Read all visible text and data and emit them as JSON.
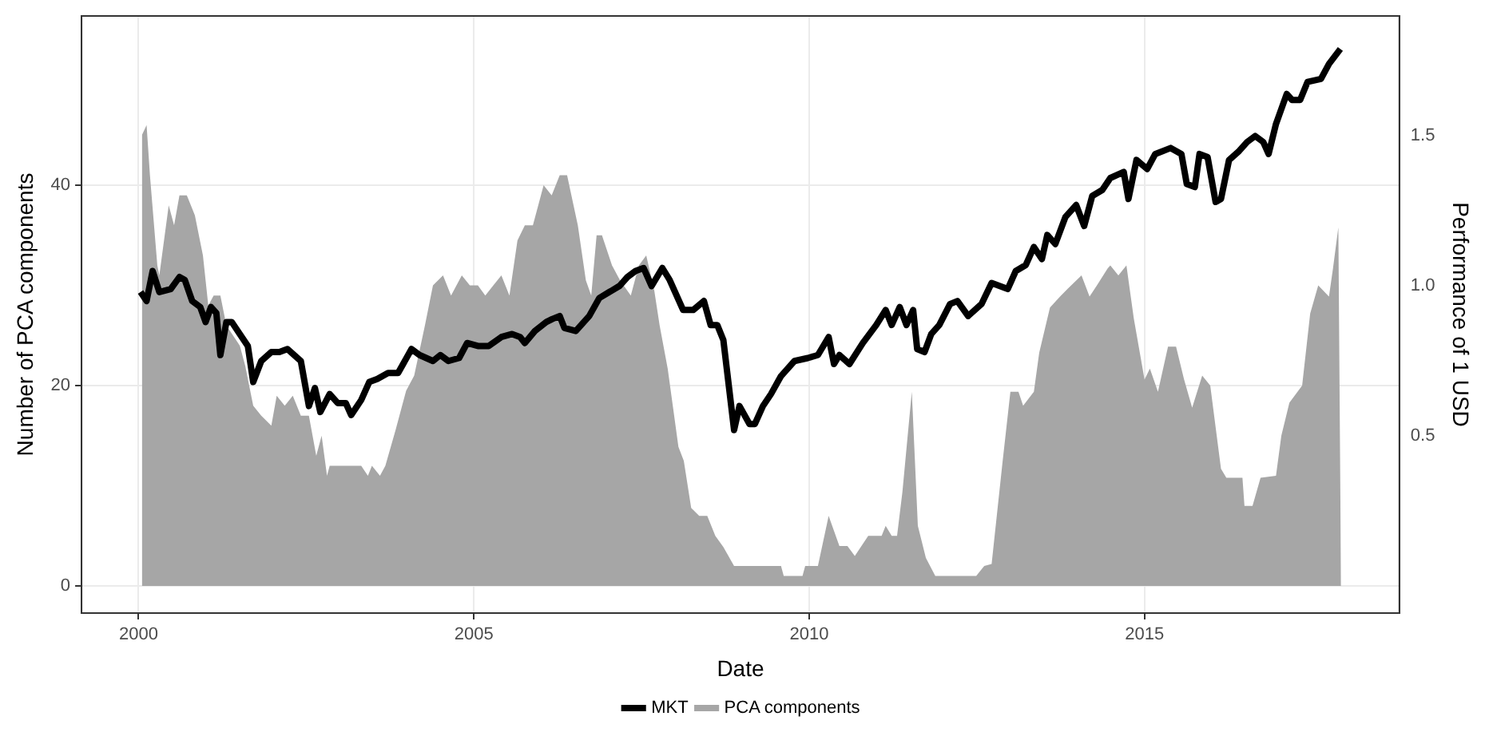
{
  "chart_data": {
    "type": "line",
    "xlabel": "Date",
    "ylabel": "Number of PCA components",
    "y2label": "Performance of 1 USD",
    "xlim": [
      1999.15,
      2018.8
    ],
    "xticks": [
      2000,
      2005,
      2010,
      2015
    ],
    "ylim": [
      -2.7,
      56.9
    ],
    "yticks": [
      0,
      20,
      40
    ],
    "y2lim": [
      -0.09,
      1.9
    ],
    "y2ticks": [
      {
        "value": 0.5,
        "label": "0.5"
      },
      {
        "value": 1,
        "label": "1.0"
      },
      {
        "value": 1.5,
        "label": "1.5"
      }
    ],
    "grid": true,
    "legend": "bottom",
    "marker": "none",
    "line_style": "solid",
    "series": [
      {
        "name": "MKT",
        "type": "line",
        "axis": "y2",
        "color": "#000000",
        "x": [
          2000.03,
          2000.12,
          2000.21,
          2000.31,
          2000.48,
          2000.61,
          2000.69,
          2000.8,
          2000.92,
          2001.0,
          2001.08,
          2001.16,
          2001.22,
          2001.31,
          2001.39,
          2001.51,
          2001.63,
          2001.71,
          2001.83,
          2001.98,
          2002.1,
          2002.22,
          2002.42,
          2002.54,
          2002.63,
          2002.71,
          2002.85,
          2002.97,
          2003.09,
          2003.17,
          2003.32,
          2003.44,
          2003.56,
          2003.72,
          2003.87,
          2004.07,
          2004.19,
          2004.39,
          2004.5,
          2004.62,
          2004.78,
          2004.9,
          2005.06,
          2005.22,
          2005.41,
          2005.57,
          2005.69,
          2005.76,
          2005.91,
          2006.08,
          2006.17,
          2006.28,
          2006.35,
          2006.52,
          2006.72,
          2006.87,
          2007.02,
          2007.17,
          2007.29,
          2007.41,
          2007.53,
          2007.65,
          2007.81,
          2007.92,
          2008.12,
          2008.27,
          2008.43,
          2008.53,
          2008.63,
          2008.72,
          2008.88,
          2008.96,
          2009.11,
          2009.19,
          2009.31,
          2009.43,
          2009.58,
          2009.78,
          2009.98,
          2010.13,
          2010.29,
          2010.37,
          2010.45,
          2010.6,
          2010.8,
          2011.0,
          2011.14,
          2011.23,
          2011.35,
          2011.45,
          2011.55,
          2011.61,
          2011.72,
          2011.82,
          2011.94,
          2012.1,
          2012.21,
          2012.37,
          2012.57,
          2012.72,
          2012.96,
          2013.08,
          2013.23,
          2013.35,
          2013.47,
          2013.55,
          2013.67,
          2013.82,
          2013.98,
          2014.1,
          2014.22,
          2014.37,
          2014.49,
          2014.69,
          2014.76,
          2014.88,
          2015.04,
          2015.16,
          2015.39,
          2015.55,
          2015.63,
          2015.75,
          2015.82,
          2015.94,
          2016.06,
          2016.14,
          2016.26,
          2016.41,
          2016.53,
          2016.65,
          2016.77,
          2016.85,
          2016.96,
          2017.12,
          2017.2,
          2017.32,
          2017.43,
          2017.63,
          2017.75,
          2017.92
        ],
        "values": [
          0.98,
          0.95,
          1.05,
          0.98,
          0.99,
          1.03,
          1.02,
          0.95,
          0.93,
          0.88,
          0.93,
          0.91,
          0.77,
          0.88,
          0.88,
          0.84,
          0.8,
          0.68,
          0.75,
          0.78,
          0.78,
          0.79,
          0.75,
          0.6,
          0.66,
          0.58,
          0.64,
          0.61,
          0.61,
          0.57,
          0.62,
          0.68,
          0.69,
          0.71,
          0.71,
          0.79,
          0.77,
          0.75,
          0.77,
          0.75,
          0.76,
          0.81,
          0.8,
          0.8,
          0.83,
          0.84,
          0.83,
          0.81,
          0.85,
          0.88,
          0.89,
          0.9,
          0.86,
          0.85,
          0.9,
          0.96,
          0.98,
          1.0,
          1.03,
          1.05,
          1.06,
          1.0,
          1.06,
          1.02,
          0.92,
          0.92,
          0.95,
          0.87,
          0.87,
          0.82,
          0.52,
          0.6,
          0.54,
          0.54,
          0.6,
          0.64,
          0.7,
          0.75,
          0.76,
          0.77,
          0.83,
          0.74,
          0.77,
          0.74,
          0.81,
          0.87,
          0.92,
          0.87,
          0.93,
          0.87,
          0.92,
          0.79,
          0.78,
          0.84,
          0.87,
          0.94,
          0.95,
          0.9,
          0.94,
          1.01,
          0.99,
          1.05,
          1.07,
          1.13,
          1.09,
          1.17,
          1.14,
          1.23,
          1.27,
          1.2,
          1.3,
          1.32,
          1.36,
          1.38,
          1.29,
          1.42,
          1.39,
          1.44,
          1.46,
          1.44,
          1.34,
          1.33,
          1.44,
          1.43,
          1.28,
          1.29,
          1.42,
          1.45,
          1.48,
          1.5,
          1.48,
          1.44,
          1.54,
          1.64,
          1.62,
          1.62,
          1.68,
          1.69,
          1.74,
          1.79
        ]
      },
      {
        "name": "PCA components",
        "type": "area",
        "axis": "y",
        "color": "#a6a6a6",
        "x": [
          2000.05,
          2000.12,
          2000.17,
          2000.28,
          2000.31,
          2000.45,
          2000.53,
          2000.61,
          2000.72,
          2000.84,
          2000.96,
          2001.04,
          2001.12,
          2001.22,
          2001.31,
          2001.51,
          2001.59,
          2001.71,
          2001.83,
          2001.98,
          2002.06,
          2002.18,
          2002.3,
          2002.42,
          2002.54,
          2002.65,
          2002.73,
          2002.81,
          2002.85,
          2003.32,
          2003.42,
          2003.48,
          2003.6,
          2003.68,
          2003.83,
          2003.99,
          2004.11,
          2004.27,
          2004.39,
          2004.54,
          2004.66,
          2004.82,
          2004.94,
          2005.06,
          2005.17,
          2005.29,
          2005.41,
          2005.53,
          2005.65,
          2005.76,
          2005.88,
          2006.04,
          2006.16,
          2006.28,
          2006.39,
          2006.55,
          2006.67,
          2006.75,
          2006.83,
          2006.91,
          2007.06,
          2007.18,
          2007.34,
          2007.46,
          2007.57,
          2007.69,
          2007.77,
          2007.89,
          2008.05,
          2008.13,
          2008.24,
          2008.36,
          2008.48,
          2008.6,
          2008.72,
          2008.88,
          2009.58,
          2009.62,
          2009.9,
          2009.94,
          2010.13,
          2010.29,
          2010.45,
          2010.57,
          2010.68,
          2010.88,
          2011.08,
          2011.14,
          2011.23,
          2011.31,
          2011.39,
          2011.53,
          2011.62,
          2011.74,
          2011.88,
          2012.49,
          2012.61,
          2012.72,
          2012.88,
          2013.0,
          2013.12,
          2013.19,
          2013.35,
          2013.43,
          2013.59,
          2013.74,
          2013.86,
          2014.06,
          2014.18,
          2014.29,
          2014.45,
          2014.49,
          2014.61,
          2014.73,
          2014.84,
          2015.0,
          2015.08,
          2015.2,
          2015.35,
          2015.47,
          2015.59,
          2015.71,
          2015.86,
          2015.98,
          2016.14,
          2016.22,
          2016.46,
          2016.49,
          2016.61,
          2016.73,
          2016.96,
          2017.04,
          2017.16,
          2017.35,
          2017.47,
          2017.59,
          2017.75,
          2017.81,
          2017.89,
          2017.93
        ],
        "values": [
          45,
          46,
          41,
          32,
          31,
          38,
          36,
          39,
          39,
          37,
          33,
          28,
          29,
          29,
          26,
          24,
          22,
          18,
          17,
          16,
          19,
          18,
          19,
          17,
          17,
          13,
          15,
          11,
          12,
          12,
          11,
          12,
          11,
          12,
          15.5,
          19.5,
          21,
          26,
          30,
          31,
          29,
          31,
          30,
          30,
          29,
          30,
          31,
          29,
          34.5,
          36,
          36,
          40,
          39,
          41,
          41,
          36,
          30.5,
          29,
          35,
          35,
          32,
          30.5,
          29,
          32,
          33,
          29.5,
          26,
          21.7,
          13.9,
          12.5,
          7.8,
          7,
          7,
          5,
          3.9,
          2,
          2,
          1,
          1,
          2,
          2,
          7,
          4,
          4,
          3,
          5,
          5,
          6,
          5,
          5,
          9.4,
          19.4,
          6,
          2.8,
          1,
          1,
          2,
          2.2,
          12.2,
          19.4,
          19.4,
          18,
          19.4,
          23.3,
          27.8,
          28.9,
          29.7,
          31,
          28.9,
          30,
          31.7,
          32,
          31,
          32,
          26.7,
          20.6,
          21.7,
          19.4,
          23.9,
          23.9,
          20.6,
          17.8,
          21,
          20,
          11.7,
          10.8,
          10.8,
          8,
          8,
          10.8,
          11,
          15,
          18.3,
          20,
          27.2,
          30,
          28.9,
          31.7,
          35.8,
          0
        ]
      }
    ]
  }
}
